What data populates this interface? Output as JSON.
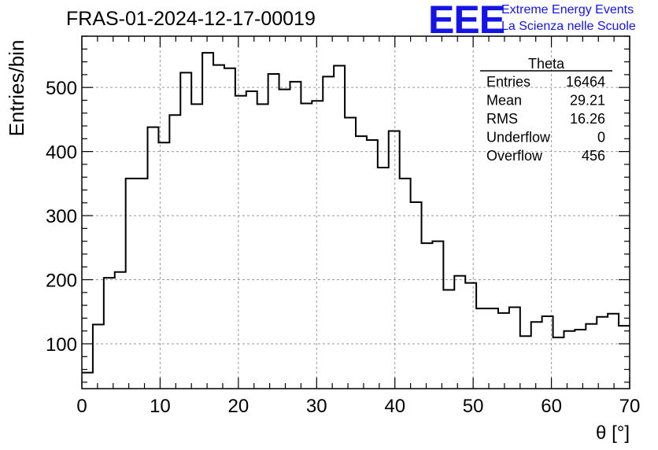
{
  "header": {
    "run_title": "FRAS-01-2024-12-17-00019",
    "logo_letters": "EEE",
    "logo_line1": "Extreme Energy Events",
    "logo_line2": "La Scienza nelle Scuole"
  },
  "stats": {
    "title": "Theta",
    "rows": [
      {
        "label": "Entries",
        "value": "16464"
      },
      {
        "label": "Mean",
        "value": "29.21"
      },
      {
        "label": "RMS",
        "value": "16.26"
      },
      {
        "label": "Underflow",
        "value": "0"
      },
      {
        "label": "Overflow",
        "value": "456"
      }
    ]
  },
  "chart_data": {
    "type": "bar",
    "style": "step-histogram",
    "xlabel": "θ [°]",
    "ylabel": "Entries/bin",
    "xlim": [
      0,
      70
    ],
    "ylim": [
      30,
      580
    ],
    "grid": true,
    "bin_width": 1.4,
    "x_ticks": [
      0,
      10,
      20,
      30,
      40,
      50,
      60,
      70
    ],
    "y_ticks": [
      100,
      200,
      300,
      400,
      500
    ],
    "values": [
      55,
      130,
      203,
      212,
      358,
      358,
      438,
      414,
      457,
      523,
      474,
      554,
      535,
      530,
      487,
      494,
      474,
      521,
      497,
      509,
      475,
      479,
      517,
      534,
      453,
      424,
      418,
      375,
      432,
      358,
      321,
      257,
      260,
      184,
      206,
      195,
      155,
      155,
      148,
      157,
      112,
      134,
      143,
      110,
      120,
      122,
      131,
      142,
      147,
      128
    ]
  }
}
